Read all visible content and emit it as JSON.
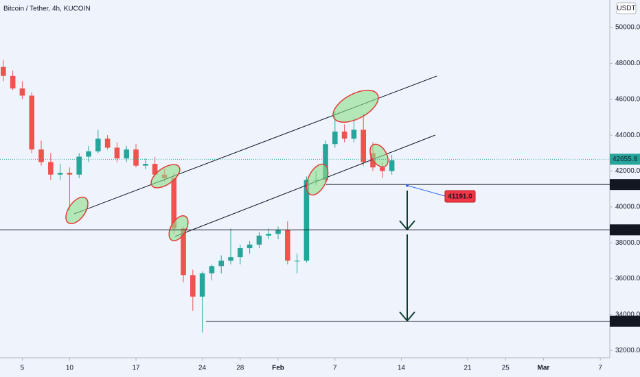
{
  "chart_data": {
    "type": "candlestick",
    "title": "Bitcoin / Tether, 4h, KUCOIN",
    "currency": "USDT",
    "up_color": "#26a69a",
    "down_color": "#ef5350",
    "x": [
      3,
      4,
      5,
      6,
      7,
      8,
      9,
      10,
      11,
      12,
      13,
      14,
      15,
      16,
      17,
      18,
      19,
      20,
      21,
      22,
      23,
      24,
      25,
      26,
      27,
      28,
      29,
      30,
      31,
      32,
      33,
      34,
      35,
      36,
      37,
      38,
      39,
      40,
      41,
      42,
      43,
      44
    ],
    "open": [
      47800,
      47300,
      46600,
      46200,
      43200,
      42500,
      41800,
      41900,
      41800,
      42800,
      43100,
      43800,
      43300,
      42700,
      43200,
      42300,
      42400,
      41800,
      41600,
      38800,
      36200,
      35000,
      36300,
      36700,
      37000,
      37200,
      37700,
      37900,
      38400,
      38500,
      38700,
      37000,
      37000,
      41500,
      41500,
      43500,
      44200,
      43800,
      44300,
      43000,
      42200,
      42000
    ],
    "high": [
      48200,
      47600,
      47000,
      46400,
      43700,
      43000,
      42400,
      42200,
      43000,
      43400,
      44300,
      44000,
      43600,
      43400,
      43500,
      42700,
      42800,
      42100,
      41900,
      38900,
      36500,
      36400,
      36800,
      37300,
      38800,
      37900,
      38100,
      38600,
      38800,
      38900,
      39200,
      37400,
      41700,
      42000,
      43700,
      45300,
      44600,
      45000,
      45200,
      43600,
      42500,
      42900
    ],
    "low": [
      47000,
      46500,
      46000,
      43000,
      42300,
      41500,
      41500,
      39800,
      41600,
      42500,
      43000,
      43200,
      42500,
      42500,
      42200,
      42100,
      41700,
      41400,
      38500,
      35800,
      34200,
      33000,
      35900,
      36300,
      36800,
      36800,
      37400,
      37700,
      38200,
      38200,
      36800,
      36300,
      36900,
      41200,
      41300,
      43300,
      43600,
      43600,
      42300,
      42000,
      41600,
      41800
    ],
    "close": [
      47300,
      46600,
      46200,
      43200,
      42500,
      41800,
      41900,
      41800,
      42800,
      43100,
      43800,
      43300,
      42700,
      43200,
      42300,
      42400,
      41800,
      41600,
      38800,
      36200,
      35000,
      36300,
      36700,
      37000,
      37200,
      37700,
      37900,
      38400,
      38500,
      38700,
      37000,
      37000,
      41500,
      41500,
      43500,
      44200,
      43800,
      44300,
      42500,
      42200,
      42000,
      42600
    ],
    "xlim": [
      2.65,
      67
    ],
    "xticks": [
      5,
      10,
      17,
      24,
      28,
      {
        "value": 32,
        "label": "Feb"
      },
      {
        "value": 38,
        "label": "7"
      },
      {
        "value": 45,
        "label": "14"
      },
      {
        "value": 52,
        "label": "21"
      },
      {
        "value": 56,
        "label": "25"
      },
      {
        "value": 60,
        "label": "Mar"
      },
      {
        "value": 66,
        "label": "7"
      }
    ],
    "ylim": [
      31590,
      51530
    ],
    "yticks": [
      {
        "value": 32000,
        "label": "32000.0"
      },
      {
        "value": 34000,
        "label": "34000.0"
      },
      {
        "value": 36000,
        "label": "36000.0"
      },
      {
        "value": 38000,
        "label": "38000.0"
      },
      {
        "value": 40000,
        "label": "40000.0"
      },
      {
        "value": 42000,
        "label": "42000.0"
      },
      {
        "value": 44000,
        "label": "44000.0"
      },
      {
        "value": 46000,
        "label": "46000.0"
      },
      {
        "value": 48000,
        "label": "48000.0"
      },
      {
        "value": 50000,
        "label": "50000.0"
      }
    ],
    "last_price": 42655.8,
    "levels": [
      41247.7,
      38721.1,
      33625.8
    ],
    "marker_price": {
      "value": 41191.0,
      "label": "41191.0"
    }
  }
}
